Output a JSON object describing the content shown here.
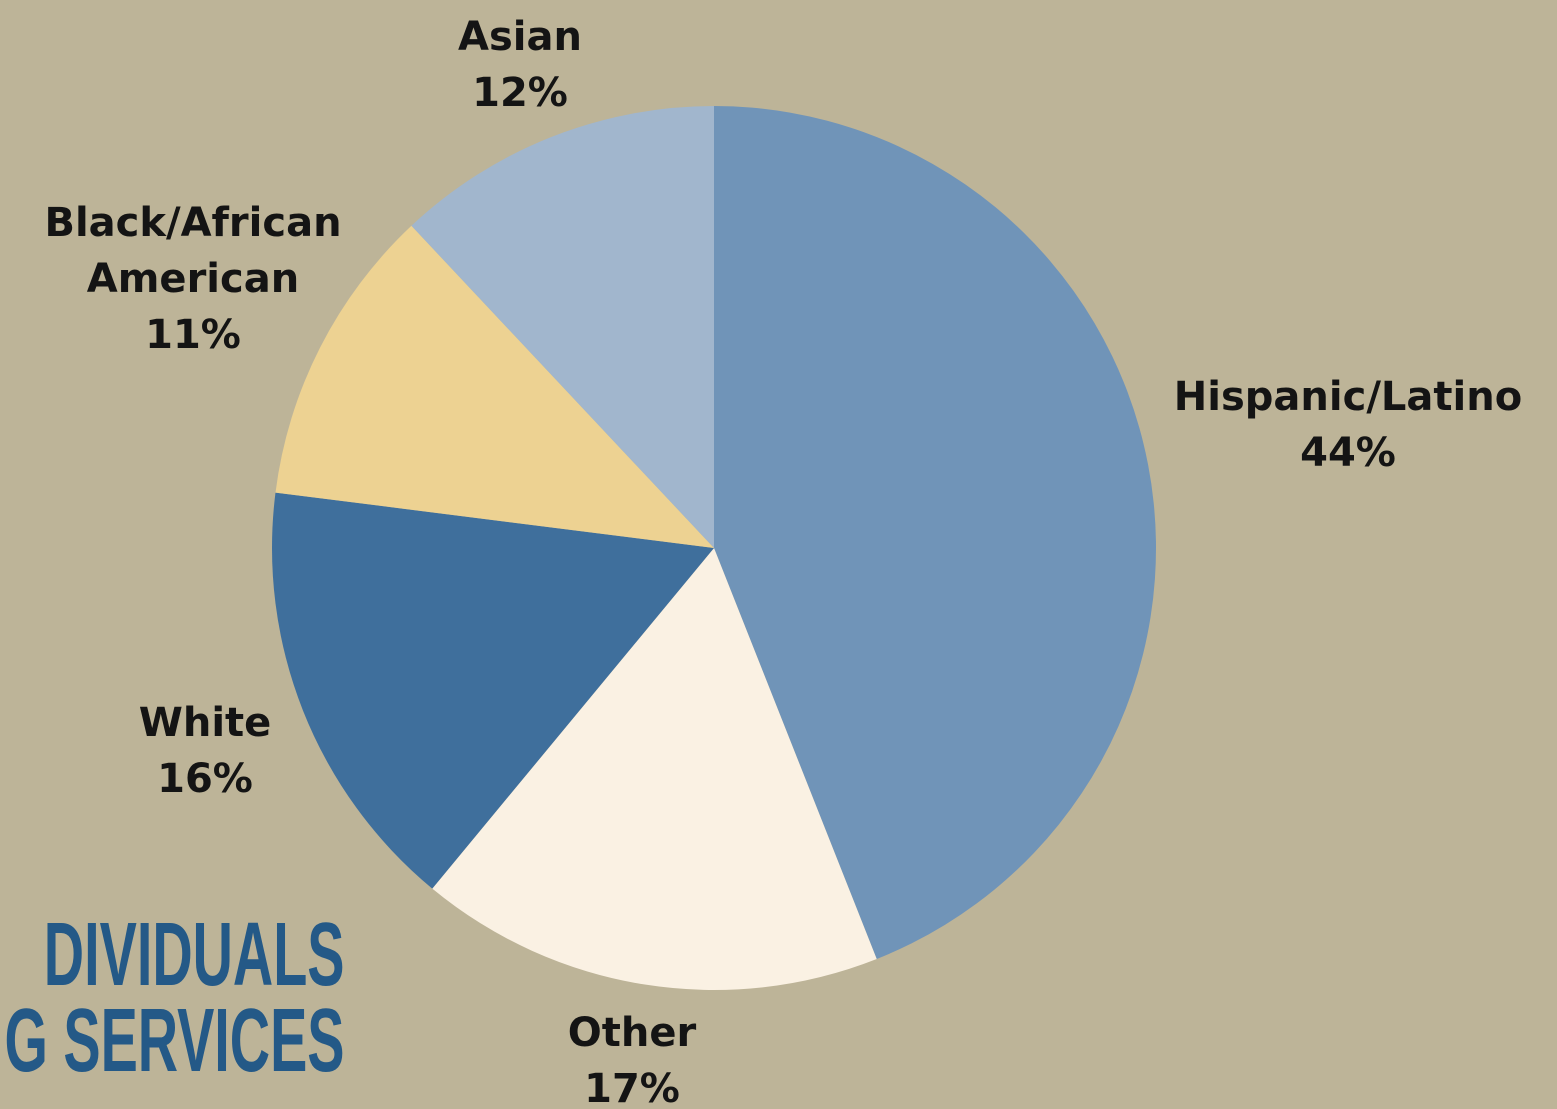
{
  "chart_data": {
    "type": "pie",
    "title": "",
    "start_angle_deg": 0,
    "direction": "clockwise",
    "slices": [
      {
        "label_lines": [
          "Hispanic/Latino"
        ],
        "value": 44,
        "value_label": "44%",
        "color": "#7094b8"
      },
      {
        "label_lines": [
          "Other"
        ],
        "value": 17,
        "value_label": "17%",
        "color": "#faf1e3"
      },
      {
        "label_lines": [
          "White"
        ],
        "value": 16,
        "value_label": "16%",
        "color": "#3f6f9c"
      },
      {
        "label_lines": [
          "Black/African",
          "American"
        ],
        "value": 11,
        "value_label": "11%",
        "color": "#edd292"
      },
      {
        "label_lines": [
          "Asian"
        ],
        "value": 12,
        "value_label": "12%",
        "color": "#a1b6cd"
      }
    ]
  },
  "heading": {
    "line1": "DIVIDUALS",
    "line2": "G SERVICES"
  },
  "colors": {
    "background": "#bdb498",
    "heading": "#245987",
    "label_text": "#141414"
  }
}
